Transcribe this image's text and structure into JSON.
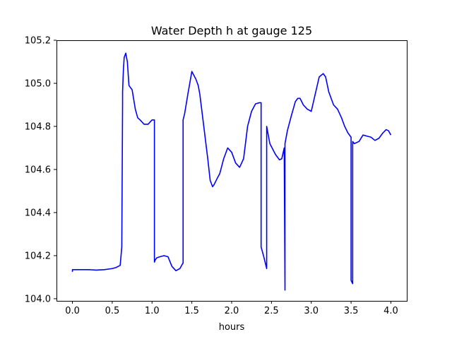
{
  "chart_data": {
    "type": "line",
    "title": "Water Depth h at gauge 125",
    "xlabel": "hours",
    "ylabel": "",
    "xlim": [
      -0.2,
      4.2
    ],
    "ylim": [
      103.99,
      105.2
    ],
    "xticks": [
      0.0,
      0.5,
      1.0,
      1.5,
      2.0,
      2.5,
      3.0,
      3.5,
      4.0
    ],
    "xtick_labels": [
      "0.0",
      "0.5",
      "1.0",
      "1.5",
      "2.0",
      "2.5",
      "3.0",
      "3.5",
      "4.0"
    ],
    "yticks": [
      104.0,
      104.2,
      104.4,
      104.6,
      104.8,
      105.0,
      105.2
    ],
    "ytick_labels": [
      "104.0",
      "104.2",
      "104.4",
      "104.6",
      "104.8",
      "105.0",
      "105.2"
    ],
    "grid": false,
    "series": [
      {
        "color": "#0000ff",
        "x": [
          0.0,
          0.0,
          0.05,
          0.1,
          0.2,
          0.3,
          0.4,
          0.5,
          0.55,
          0.6,
          0.62,
          0.63,
          0.63,
          0.64,
          0.65,
          0.67,
          0.69,
          0.71,
          0.73,
          0.75,
          0.79,
          0.82,
          0.85,
          0.9,
          0.95,
          1.0,
          1.03,
          1.03,
          1.04,
          1.06,
          1.1,
          1.15,
          1.2,
          1.25,
          1.3,
          1.35,
          1.38,
          1.39,
          1.39,
          1.41,
          1.45,
          1.5,
          1.55,
          1.58,
          1.6,
          1.65,
          1.7,
          1.73,
          1.76,
          1.78,
          1.82,
          1.85,
          1.9,
          1.95,
          2.0,
          2.05,
          2.1,
          2.15,
          2.2,
          2.25,
          2.3,
          2.35,
          2.37,
          2.37,
          2.4,
          2.44,
          2.44,
          2.48,
          2.55,
          2.6,
          2.63,
          2.66,
          2.67,
          2.67,
          2.67,
          2.7,
          2.75,
          2.8,
          2.83,
          2.86,
          2.9,
          2.95,
          3.0,
          3.05,
          3.1,
          3.15,
          3.18,
          3.22,
          3.28,
          3.33,
          3.38,
          3.42,
          3.46,
          3.5,
          3.5,
          3.52,
          3.52,
          3.54,
          3.6,
          3.65,
          3.7,
          3.75,
          3.8,
          3.85,
          3.9,
          3.94,
          3.97,
          4.0
        ],
        "y": [
          104.125,
          104.135,
          104.135,
          104.135,
          104.135,
          104.133,
          104.135,
          104.14,
          104.145,
          104.155,
          104.24,
          104.91,
          104.96,
          105.06,
          105.12,
          105.14,
          105.1,
          104.99,
          104.98,
          104.97,
          104.88,
          104.84,
          104.83,
          104.81,
          104.81,
          104.83,
          104.83,
          104.17,
          104.18,
          104.19,
          104.195,
          104.2,
          104.195,
          104.15,
          104.13,
          104.14,
          104.16,
          104.165,
          104.83,
          104.86,
          104.95,
          105.055,
          105.02,
          104.99,
          104.95,
          104.8,
          104.65,
          104.55,
          104.52,
          104.53,
          104.56,
          104.58,
          104.65,
          104.7,
          104.68,
          104.63,
          104.61,
          104.65,
          104.8,
          104.87,
          104.905,
          104.91,
          104.91,
          104.24,
          104.2,
          104.14,
          104.8,
          104.72,
          104.67,
          104.645,
          104.65,
          104.7,
          104.04,
          104.68,
          104.72,
          104.78,
          104.85,
          104.915,
          104.93,
          104.93,
          104.9,
          104.88,
          104.87,
          104.95,
          105.03,
          105.045,
          105.03,
          104.96,
          104.9,
          104.88,
          104.84,
          104.8,
          104.77,
          104.75,
          104.085,
          104.07,
          104.73,
          104.72,
          104.73,
          104.76,
          104.755,
          104.75,
          104.735,
          104.745,
          104.77,
          104.785,
          104.78,
          104.76
        ]
      }
    ]
  }
}
